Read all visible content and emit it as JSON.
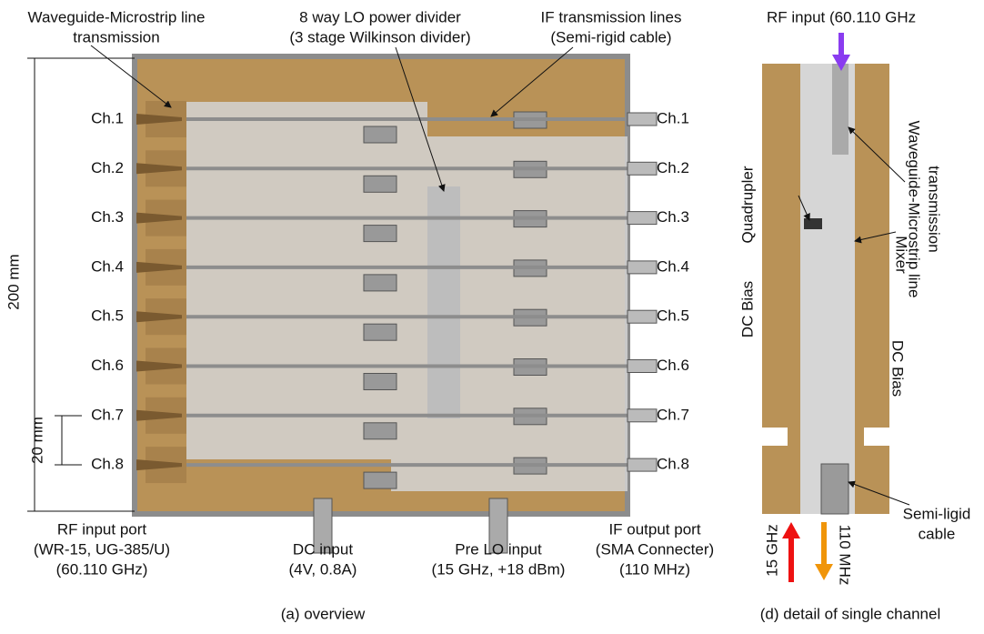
{
  "overview": {
    "caption": "(a) overview",
    "channels": [
      "Ch.1",
      "Ch.2",
      "Ch.3",
      "Ch.4",
      "Ch.5",
      "Ch.6",
      "Ch.7",
      "Ch.8"
    ],
    "waveguide": [
      "Waveguide-Microstrip line",
      "transmission"
    ],
    "lo_divider": [
      "8 way LO power divider",
      "(3 stage Wilkinson divider)"
    ],
    "if_lines": [
      "IF transmission lines",
      "(Semi-rigid cable)"
    ],
    "rf_port": [
      "RF input port",
      "(WR-15, UG-385/U)",
      "(60.110 GHz)"
    ],
    "dc_input": [
      "DC input",
      "(4V, 0.8A)"
    ],
    "pre_lo": [
      "Pre LO input",
      "(15 GHz, +18 dBm)"
    ],
    "if_port": [
      "IF output port",
      "(SMA Connecter)",
      "(110 MHz)"
    ],
    "height": "200 mm",
    "pitch": "20 mm"
  },
  "detail": {
    "caption": "(d) detail of single channel",
    "rf_input": "RF input (60.110 GHz",
    "quadrupler": "Quadrupler",
    "dc_bias_left": "DC Bias",
    "mixer": "Mixer",
    "waveguide": [
      "Waveguide-Microstrip line",
      "transmission"
    ],
    "dc_bias_right": "DC Bias",
    "cable": [
      "Semi-ligid",
      "cable"
    ],
    "lo_freq": "15 GHz",
    "if_freq": "110 MHz"
  }
}
